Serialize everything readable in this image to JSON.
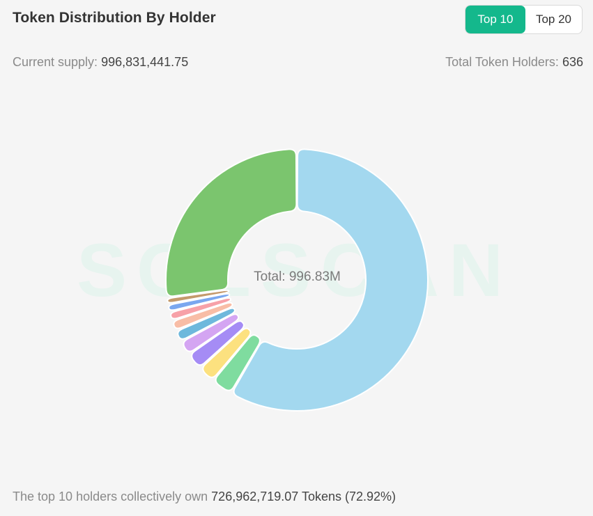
{
  "header": {
    "title": "Token Distribution By Holder",
    "toggle": [
      {
        "label": "Top 10",
        "active": true
      },
      {
        "label": "Top 20",
        "active": false
      }
    ]
  },
  "stats": {
    "supply_label": "Current supply:",
    "supply_value": "996,831,441.75",
    "holders_label": "Total Token Holders:",
    "holders_value": "636"
  },
  "watermark": "SOLSCAN",
  "footer": {
    "prefix": "The top 10 holders collectively own",
    "value": "726,962,719.07 Tokens (72.92%)"
  },
  "chart_data": {
    "type": "pie",
    "variant": "donut",
    "center_label": "Total: 996.83M",
    "total": 996.83,
    "slices": [
      {
        "value": 582.0,
        "color": "#a3d8ef"
      },
      {
        "value": 27.0,
        "color": "#7fdc9f"
      },
      {
        "value": 21.5,
        "color": "#fce17f"
      },
      {
        "value": 21.5,
        "color": "#a58cf5"
      },
      {
        "value": 18.0,
        "color": "#d4a5f2"
      },
      {
        "value": 14.5,
        "color": "#6eb8dc"
      },
      {
        "value": 13.0,
        "color": "#f8bda6"
      },
      {
        "value": 11.0,
        "color": "#f7a1a8"
      },
      {
        "value": 9.5,
        "color": "#7aa7ef"
      },
      {
        "value": 8.0,
        "color": "#c49a6c"
      },
      {
        "value": 270.83,
        "color": "#7bc56e"
      }
    ]
  },
  "colors": {
    "accent": "#14b88c",
    "background": "#f5f5f5"
  }
}
